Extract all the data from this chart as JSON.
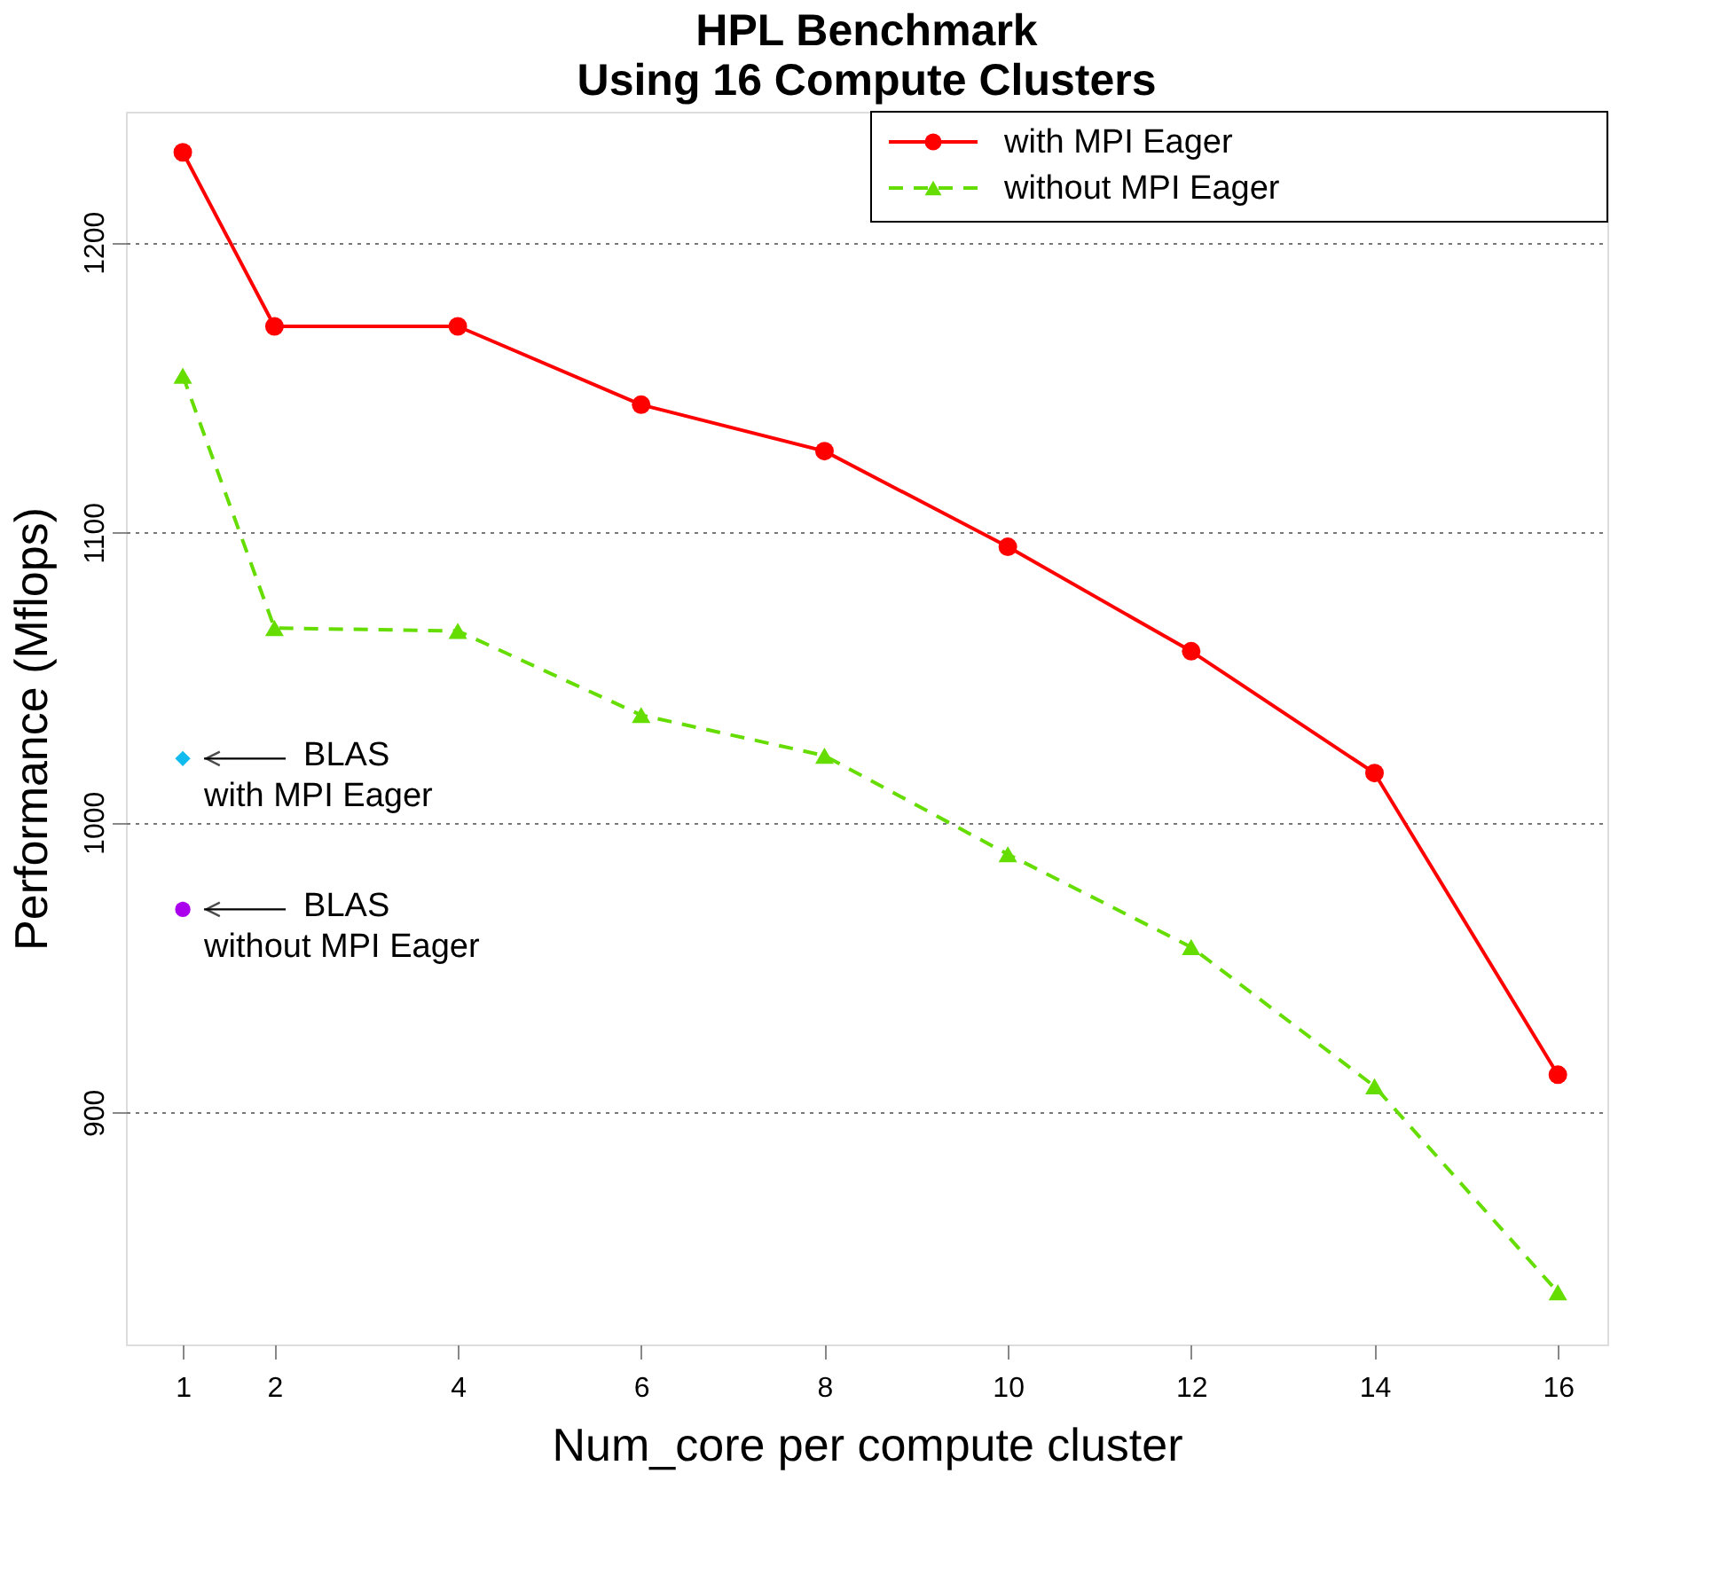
{
  "chart_data": {
    "type": "line",
    "title": "HPL Benchmark",
    "subtitle": "Using 16 Compute Clusters",
    "xlabel": "Num_core per compute cluster",
    "ylabel": "Performance (Mflops)",
    "x": [
      1,
      2,
      4,
      6,
      8,
      10,
      12,
      14,
      16
    ],
    "series": [
      {
        "name": "with MPI Eager",
        "color": "#ff0000",
        "marker": "circle",
        "line_style": "solid",
        "values": [
          1231,
          1171,
          1171,
          1144,
          1128,
          1095,
          1059,
          1017,
          913
        ]
      },
      {
        "name": "without MPI Eager",
        "color": "#66dd00",
        "marker": "triangle",
        "line_style": "dashed",
        "values": [
          1154,
          1067,
          1066,
          1037,
          1023,
          989,
          957,
          909,
          838
        ]
      },
      {
        "type": "scatter",
        "color": "#11bbee",
        "marker": "diamond",
        "x": [
          1
        ],
        "values": [
          1022
        ]
      },
      {
        "type": "scatter",
        "color": "#aa00ee",
        "marker": "circle",
        "x": [
          1
        ],
        "values": [
          970
        ]
      }
    ],
    "annotations": [
      {
        "text": "BLAS\nwith MPI Eager",
        "x": 1,
        "y": 1022
      },
      {
        "text": "BLAS\nwithout MPI Eager",
        "x": 1,
        "y": 970
      }
    ],
    "xlim": [
      0.38,
      16.54
    ],
    "xticks": [
      1,
      2,
      4,
      6,
      8,
      10,
      12,
      14,
      16
    ],
    "ylim": [
      820,
      1245
    ],
    "yticks": [
      900,
      1000,
      1100,
      1200
    ],
    "grid": "y",
    "legend": "top right"
  }
}
